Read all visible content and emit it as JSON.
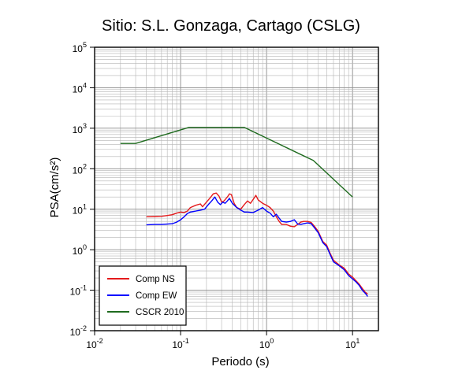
{
  "chart_data": {
    "type": "line",
    "title": "Sitio: S.L. Gonzaga, Cartago (CSLG)",
    "xlabel": "Periodo (s)",
    "ylabel": "PSA(cm/s²)",
    "xscale": "log",
    "yscale": "log",
    "xlim": [
      0.01,
      20
    ],
    "ylim": [
      0.01,
      100000
    ],
    "grid": true,
    "legend_position": "bottom-left",
    "x_ticks": [
      "10⁻²",
      "10⁻¹",
      "10⁰",
      "10¹"
    ],
    "y_ticks": [
      "10⁻²",
      "10⁻¹",
      "10⁰",
      "10¹",
      "10²",
      "10³",
      "10⁴",
      "10⁵"
    ],
    "series": [
      {
        "name": "Comp NS",
        "color": "#e41a1c",
        "points": [
          [
            0.04,
            6.5
          ],
          [
            0.05,
            6.6
          ],
          [
            0.06,
            6.7
          ],
          [
            0.07,
            7.0
          ],
          [
            0.08,
            7.3
          ],
          [
            0.09,
            8.0
          ],
          [
            0.1,
            8.5
          ],
          [
            0.11,
            8.3
          ],
          [
            0.12,
            9.0
          ],
          [
            0.13,
            11.0
          ],
          [
            0.15,
            12.5
          ],
          [
            0.17,
            13.5
          ],
          [
            0.18,
            11.5
          ],
          [
            0.2,
            15.0
          ],
          [
            0.22,
            19.0
          ],
          [
            0.24,
            24.0
          ],
          [
            0.26,
            25.0
          ],
          [
            0.28,
            21.0
          ],
          [
            0.3,
            15.0
          ],
          [
            0.32,
            16.0
          ],
          [
            0.35,
            20.0
          ],
          [
            0.37,
            24.0
          ],
          [
            0.39,
            23.0
          ],
          [
            0.42,
            14.0
          ],
          [
            0.45,
            11.0
          ],
          [
            0.5,
            10.0
          ],
          [
            0.55,
            13.0
          ],
          [
            0.6,
            16.0
          ],
          [
            0.65,
            14.0
          ],
          [
            0.7,
            17.5
          ],
          [
            0.75,
            22.0
          ],
          [
            0.8,
            17.0
          ],
          [
            0.9,
            14.0
          ],
          [
            1.0,
            12.5
          ],
          [
            1.1,
            11.0
          ],
          [
            1.2,
            9.0
          ],
          [
            1.3,
            6.5
          ],
          [
            1.4,
            5.0
          ],
          [
            1.5,
            4.2
          ],
          [
            1.7,
            4.2
          ],
          [
            1.9,
            3.8
          ],
          [
            2.1,
            3.7
          ],
          [
            2.3,
            4.2
          ],
          [
            2.5,
            4.8
          ],
          [
            2.7,
            5.0
          ],
          [
            3.0,
            5.0
          ],
          [
            3.3,
            4.7
          ],
          [
            3.6,
            3.8
          ],
          [
            4.0,
            2.8
          ],
          [
            4.5,
            1.6
          ],
          [
            5.0,
            1.3
          ],
          [
            5.5,
            0.8
          ],
          [
            6.0,
            0.55
          ],
          [
            7.0,
            0.42
          ],
          [
            8.0,
            0.35
          ],
          [
            9.0,
            0.25
          ],
          [
            10.0,
            0.21
          ],
          [
            11.0,
            0.17
          ],
          [
            12.0,
            0.14
          ],
          [
            13.0,
            0.11
          ],
          [
            14.0,
            0.09
          ],
          [
            15.0,
            0.08
          ]
        ]
      },
      {
        "name": "Comp EW",
        "color": "#0000ff",
        "points": [
          [
            0.04,
            4.1
          ],
          [
            0.05,
            4.2
          ],
          [
            0.06,
            4.2
          ],
          [
            0.07,
            4.3
          ],
          [
            0.08,
            4.4
          ],
          [
            0.09,
            4.8
          ],
          [
            0.1,
            5.5
          ],
          [
            0.11,
            6.5
          ],
          [
            0.12,
            7.8
          ],
          [
            0.13,
            8.5
          ],
          [
            0.15,
            9.0
          ],
          [
            0.17,
            9.5
          ],
          [
            0.19,
            10.0
          ],
          [
            0.21,
            13.0
          ],
          [
            0.23,
            16.0
          ],
          [
            0.25,
            20.0
          ],
          [
            0.27,
            15.0
          ],
          [
            0.29,
            13.0
          ],
          [
            0.31,
            15.0
          ],
          [
            0.33,
            14.0
          ],
          [
            0.35,
            16.0
          ],
          [
            0.37,
            18.5
          ],
          [
            0.4,
            14.0
          ],
          [
            0.45,
            11.0
          ],
          [
            0.5,
            9.5
          ],
          [
            0.55,
            8.5
          ],
          [
            0.6,
            8.5
          ],
          [
            0.7,
            8.3
          ],
          [
            0.8,
            9.5
          ],
          [
            0.9,
            11.0
          ],
          [
            1.0,
            9.0
          ],
          [
            1.1,
            8.0
          ],
          [
            1.2,
            6.5
          ],
          [
            1.3,
            7.5
          ],
          [
            1.4,
            6.0
          ],
          [
            1.5,
            5.0
          ],
          [
            1.7,
            4.8
          ],
          [
            1.9,
            5.0
          ],
          [
            2.1,
            5.5
          ],
          [
            2.3,
            4.3
          ],
          [
            2.5,
            4.2
          ],
          [
            2.7,
            4.4
          ],
          [
            3.0,
            4.6
          ],
          [
            3.3,
            4.4
          ],
          [
            3.6,
            3.5
          ],
          [
            4.0,
            2.6
          ],
          [
            4.5,
            1.5
          ],
          [
            5.0,
            1.2
          ],
          [
            5.5,
            0.75
          ],
          [
            6.0,
            0.5
          ],
          [
            7.0,
            0.4
          ],
          [
            8.0,
            0.32
          ],
          [
            9.0,
            0.23
          ],
          [
            10.0,
            0.19
          ],
          [
            11.0,
            0.16
          ],
          [
            12.0,
            0.13
          ],
          [
            13.0,
            0.1
          ],
          [
            14.0,
            0.085
          ],
          [
            15.0,
            0.07
          ]
        ]
      },
      {
        "name": "CSCR 2010",
        "color": "#1f6b1f",
        "points": [
          [
            0.02,
            420
          ],
          [
            0.03,
            420
          ],
          [
            0.125,
            1050
          ],
          [
            0.55,
            1050
          ],
          [
            3.5,
            160
          ],
          [
            10.0,
            20
          ]
        ]
      }
    ]
  }
}
